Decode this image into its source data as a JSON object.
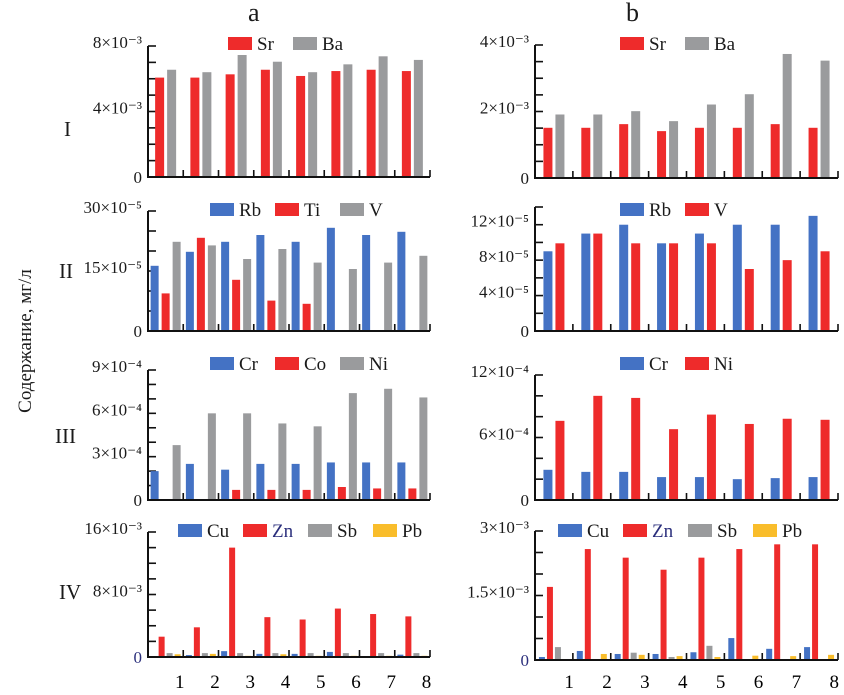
{
  "figure": {
    "column_titles": [
      "a",
      "b"
    ],
    "row_labels": [
      "I",
      "II",
      "III",
      "IV"
    ],
    "y_axis_title": "Содержание, мг/л",
    "x_tick_labels": [
      "1",
      "2",
      "3",
      "4",
      "5",
      "6",
      "7",
      "8"
    ]
  },
  "colors": {
    "blue": "#4472c4",
    "red": "#ee2b2b",
    "gray": "#9a9b9d",
    "yellow": "#f9bd2b",
    "zn_label": "#2b2f7c"
  },
  "chart_data": [
    {
      "id": "a-I",
      "type": "bar",
      "column": "a",
      "row": "I",
      "categories": [
        "1",
        "2",
        "3",
        "4",
        "5",
        "6",
        "7",
        "8"
      ],
      "ylim": [
        0,
        0.008
      ],
      "ytick_step": 0.001,
      "yticks": [
        {
          "value": 0,
          "label": "0"
        },
        {
          "value": 0.004,
          "label": "4×10⁻³"
        },
        {
          "value": 0.008,
          "label": "8×10⁻³"
        }
      ],
      "series": [
        {
          "name": "Sr",
          "color": "red",
          "values": [
            0.00607,
            0.00607,
            0.00627,
            0.00655,
            0.00617,
            0.00647,
            0.00655,
            0.00647
          ]
        },
        {
          "name": "Ba",
          "color": "gray",
          "values": [
            0.00655,
            0.0064,
            0.00745,
            0.00704,
            0.0064,
            0.00688,
            0.00737,
            0.00715
          ]
        }
      ]
    },
    {
      "id": "b-I",
      "type": "bar",
      "column": "b",
      "row": "I",
      "categories": [
        "1",
        "2",
        "3",
        "4",
        "5",
        "6",
        "7",
        "8"
      ],
      "ylim": [
        0,
        0.004
      ],
      "ytick_step": 0.0005,
      "yticks": [
        {
          "value": 0,
          "label": "0"
        },
        {
          "value": 0.002,
          "label": "2×10⁻³"
        },
        {
          "value": 0.004,
          "label": "4×10⁻³"
        }
      ],
      "series": [
        {
          "name": "Sr",
          "color": "red",
          "values": [
            0.00151,
            0.00151,
            0.00162,
            0.00141,
            0.00151,
            0.00151,
            0.00162,
            0.00151
          ]
        },
        {
          "name": "Ba",
          "color": "gray",
          "values": [
            0.00191,
            0.00191,
            0.00201,
            0.00171,
            0.00221,
            0.00252,
            0.00373,
            0.00353
          ]
        }
      ]
    },
    {
      "id": "a-II",
      "type": "bar",
      "column": "a",
      "row": "II",
      "categories": [
        "1",
        "2",
        "3",
        "4",
        "5",
        "6",
        "7",
        "8"
      ],
      "ylim": [
        0,
        0.0003
      ],
      "ytick_step": 5e-05,
      "yticks": [
        {
          "value": 0,
          "label": "0"
        },
        {
          "value": 0.00015,
          "label": "15×10⁻⁵"
        },
        {
          "value": 0.0003,
          "label": "30×10⁻⁵"
        }
      ],
      "series": [
        {
          "name": "Rb",
          "color": "blue",
          "values": [
            0.000163,
            0.000198,
            0.000223,
            0.00024,
            0.000223,
            0.000258,
            0.00024,
            0.000248
          ]
        },
        {
          "name": "Ti",
          "color": "red",
          "values": [
            9.4e-05,
            0.000233,
            0.000128,
            7.6e-05,
            6.8e-05,
            0,
            0,
            0
          ]
        },
        {
          "name": "V",
          "color": "gray",
          "values": [
            0.000223,
            0.000214,
            0.00018,
            0.000205,
            0.000171,
            0.000155,
            0.000171,
            0.000188
          ]
        }
      ]
    },
    {
      "id": "b-II",
      "type": "bar",
      "column": "b",
      "row": "II",
      "categories": [
        "1",
        "2",
        "3",
        "4",
        "5",
        "6",
        "7",
        "8"
      ],
      "ylim": [
        0,
        0.00014
      ],
      "ytick_step": 2e-05,
      "yticks": [
        {
          "value": 0,
          "label": "0"
        },
        {
          "value": 4e-05,
          "label": "4×10⁻⁵"
        },
        {
          "value": 8e-05,
          "label": "8×10⁻⁵"
        },
        {
          "value": 0.00012,
          "label": "12×10⁻⁵"
        }
      ],
      "series": [
        {
          "name": "Rb",
          "color": "blue",
          "values": [
            9e-05,
            0.00011,
            0.00012,
            9.9e-05,
            0.00011,
            0.00012,
            0.00012,
            0.00013
          ]
        },
        {
          "name": "V",
          "color": "red",
          "values": [
            9.9e-05,
            0.00011,
            9.9e-05,
            9.9e-05,
            9.9e-05,
            7e-05,
            8e-05,
            9e-05
          ]
        }
      ]
    },
    {
      "id": "a-III",
      "type": "bar",
      "column": "a",
      "row": "III",
      "categories": [
        "1",
        "2",
        "3",
        "4",
        "5",
        "6",
        "7",
        "8"
      ],
      "ylim": [
        0,
        0.0009
      ],
      "ytick_step": 0.0001,
      "yticks": [
        {
          "value": 0,
          "label": "0"
        },
        {
          "value": 0.0003,
          "label": "3×10⁻⁴"
        },
        {
          "value": 0.0006,
          "label": "6×10⁻⁴"
        },
        {
          "value": 0.0009,
          "label": "9×10⁻⁴"
        }
      ],
      "series": [
        {
          "name": "Cr",
          "color": "blue",
          "values": [
            0.0002,
            0.00025,
            0.00021,
            0.00025,
            0.00025,
            0.00026,
            0.00026,
            0.00026
          ]
        },
        {
          "name": "Co",
          "color": "red",
          "values": [
            0,
            0,
            7e-05,
            7e-05,
            7e-05,
            9e-05,
            8e-05,
            8e-05
          ]
        },
        {
          "name": "Ni",
          "color": "gray",
          "values": [
            0.00038,
            0.0006,
            0.0006,
            0.00053,
            0.00051,
            0.00074,
            0.00077,
            0.00071
          ]
        }
      ]
    },
    {
      "id": "b-III",
      "type": "bar",
      "column": "b",
      "row": "III",
      "categories": [
        "1",
        "2",
        "3",
        "4",
        "5",
        "6",
        "7",
        "8"
      ],
      "ylim": [
        0,
        0.0012
      ],
      "ytick_step": 0.0002,
      "yticks": [
        {
          "value": 0,
          "label": "0"
        },
        {
          "value": 0.0006,
          "label": "6×10⁻⁴"
        },
        {
          "value": 0.0012,
          "label": "12×10⁻⁴"
        }
      ],
      "series": [
        {
          "name": "Cr",
          "color": "blue",
          "values": [
            0.00029,
            0.00027,
            0.00027,
            0.00022,
            0.00022,
            0.0002,
            0.00021,
            0.00022
          ]
        },
        {
          "name": "Ni",
          "color": "red",
          "values": [
            0.00076,
            0.001,
            0.00098,
            0.00068,
            0.00082,
            0.00073,
            0.00078,
            0.00077
          ]
        }
      ]
    },
    {
      "id": "a-IV",
      "type": "bar",
      "column": "a",
      "row": "IV",
      "categories": [
        "1",
        "2",
        "3",
        "4",
        "5",
        "6",
        "7",
        "8"
      ],
      "ylim": [
        0,
        0.016
      ],
      "ytick_step": 0.002,
      "yticks": [
        {
          "value": 0,
          "label": "0"
        },
        {
          "value": 0.008,
          "label": "8×10⁻³"
        },
        {
          "value": 0.016,
          "label": "16×10⁻³"
        }
      ],
      "series": [
        {
          "name": "Cu",
          "color": "blue",
          "values": [
            0,
            0.00025,
            0.00075,
            0.0004,
            0.0004,
            0.00065,
            0,
            0.0003
          ]
        },
        {
          "name": "Zn",
          "color": "red",
          "values": [
            0.0026,
            0.0038,
            0.014,
            0.0051,
            0.0048,
            0.0062,
            0.0055,
            0.0052
          ]
        },
        {
          "name": "Sb",
          "color": "gray",
          "values": [
            0.0005,
            0.0005,
            0.0005,
            0.0005,
            0.0005,
            0.0005,
            0.0005,
            0.0005
          ]
        },
        {
          "name": "Pb",
          "color": "yellow",
          "values": [
            0.00035,
            0.0004,
            0.00015,
            0.00035,
            0.00015,
            0.00015,
            0.00015,
            0.00015
          ]
        }
      ]
    },
    {
      "id": "b-IV",
      "type": "bar",
      "column": "b",
      "row": "IV",
      "categories": [
        "1",
        "2",
        "3",
        "4",
        "5",
        "6",
        "7",
        "8"
      ],
      "ylim": [
        0,
        0.003
      ],
      "ytick_step": 0.0005,
      "yticks": [
        {
          "value": 0,
          "label": "0"
        },
        {
          "value": 0.0015,
          "label": "1.5×10⁻³"
        },
        {
          "value": 0.003,
          "label": "3×10⁻³"
        }
      ],
      "series": [
        {
          "name": "Cu",
          "color": "blue",
          "values": [
            7e-05,
            0.00021,
            0.00014,
            0.00014,
            0.00018,
            0.00051,
            0.00026,
            0.0003
          ]
        },
        {
          "name": "Zn",
          "color": "red",
          "values": [
            0.0017,
            0.00258,
            0.00238,
            0.0021,
            0.00238,
            0.00258,
            0.00269,
            0.00269
          ]
        },
        {
          "name": "Sb",
          "color": "gray",
          "values": [
            0.0003,
            0,
            0.00017,
            7e-05,
            0.00033,
            0,
            0,
            0
          ]
        },
        {
          "name": "Pb",
          "color": "yellow",
          "values": [
            0,
            0.00014,
            0.00012,
            9e-05,
            7e-05,
            0.0001,
            9e-05,
            0.00012
          ]
        }
      ]
    }
  ]
}
